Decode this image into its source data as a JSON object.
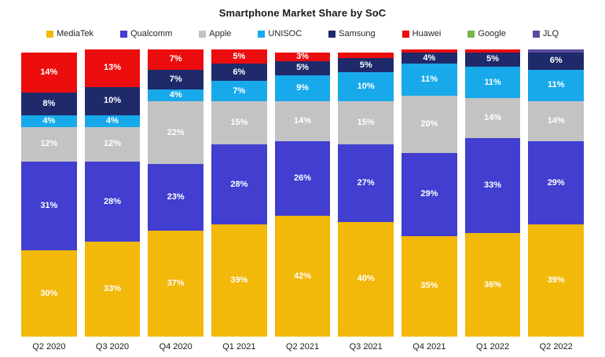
{
  "chart_data": {
    "type": "bar",
    "stacked": true,
    "title": "Smartphone Market Share by SoC",
    "unit": "%",
    "grid": false,
    "legend_position": "top",
    "ylim": [
      0,
      100
    ],
    "label_min_value": 3,
    "categories": [
      "Q2 2020",
      "Q3 2020",
      "Q4 2020",
      "Q1 2021",
      "Q2 2021",
      "Q3 2021",
      "Q4 2021",
      "Q1 2022",
      "Q2 2022"
    ],
    "series": [
      {
        "name": "MediaTek",
        "color": "#F2B80A",
        "values": [
          30,
          33,
          37,
          39,
          42,
          40,
          35,
          36,
          39
        ]
      },
      {
        "name": "Qualcomm",
        "color": "#413ED0",
        "values": [
          31,
          28,
          23,
          28,
          26,
          27,
          29,
          33,
          29
        ]
      },
      {
        "name": "Apple",
        "color": "#C3C3C3",
        "values": [
          12,
          12,
          22,
          15,
          14,
          15,
          20,
          14,
          14
        ]
      },
      {
        "name": "UNISOC",
        "color": "#18A9EA",
        "values": [
          4,
          4,
          4,
          7,
          9,
          10,
          11,
          11,
          11
        ]
      },
      {
        "name": "Samsung",
        "color": "#1F2A6B",
        "values": [
          8,
          10,
          7,
          6,
          5,
          5,
          4,
          5,
          6
        ]
      },
      {
        "name": "Huawei",
        "color": "#EB0D0D",
        "values": [
          14,
          13,
          7,
          5,
          3,
          2,
          1,
          1,
          0
        ]
      },
      {
        "name": "Google",
        "color": "#77B74A",
        "values": [
          0,
          0,
          0,
          0,
          0,
          0,
          0,
          0,
          0
        ]
      },
      {
        "name": "JLQ",
        "color": "#5B4A9E",
        "values": [
          0,
          0,
          0,
          0,
          0,
          0,
          0,
          0,
          1
        ]
      }
    ]
  }
}
